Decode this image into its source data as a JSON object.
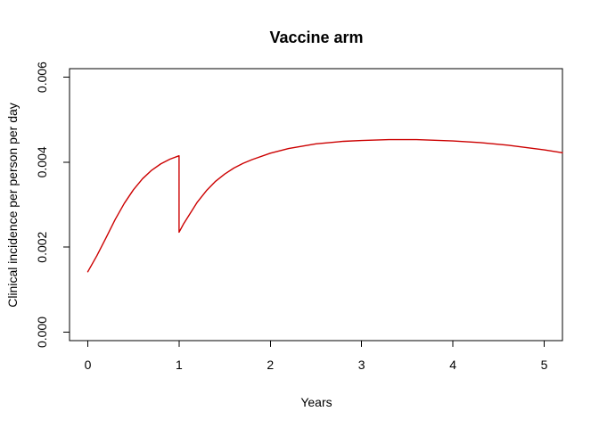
{
  "chart_data": {
    "type": "line",
    "title": "Vaccine arm",
    "xlabel": "Years",
    "ylabel": "Clinical incidence per person per day",
    "xlim": [
      -0.2,
      5.2
    ],
    "ylim": [
      -0.0002,
      0.0062
    ],
    "xticks": [
      0,
      1,
      2,
      3,
      4,
      5
    ],
    "yticks": [
      0,
      0.002,
      0.004,
      0.006
    ],
    "xtick_labels": [
      "0",
      "1",
      "2",
      "3",
      "4",
      "5"
    ],
    "ytick_labels": [
      "0.000",
      "0.002",
      "0.004",
      "0.006"
    ],
    "grid": false,
    "legend": "none",
    "series": [
      {
        "color": "#cc0000",
        "x": [
          0,
          0.1,
          0.2,
          0.3,
          0.4,
          0.5,
          0.6,
          0.7,
          0.8,
          0.9,
          1.0,
          1.0,
          1.05,
          1.1,
          1.2,
          1.3,
          1.4,
          1.5,
          1.6,
          1.7,
          1.8,
          2.0,
          2.2,
          2.5,
          2.8,
          3.0,
          3.3,
          3.6,
          4.0,
          4.3,
          4.6,
          5.0,
          5.2
        ],
        "y": [
          0.00142,
          0.0018,
          0.00222,
          0.00265,
          0.00303,
          0.00335,
          0.00361,
          0.00381,
          0.00396,
          0.00407,
          0.00415,
          0.00235,
          0.00255,
          0.00272,
          0.00306,
          0.00333,
          0.00355,
          0.00372,
          0.00386,
          0.00397,
          0.00406,
          0.00421,
          0.00432,
          0.00443,
          0.00449,
          0.00451,
          0.00453,
          0.00453,
          0.0045,
          0.00446,
          0.0044,
          0.00429,
          0.00422
        ]
      }
    ]
  }
}
